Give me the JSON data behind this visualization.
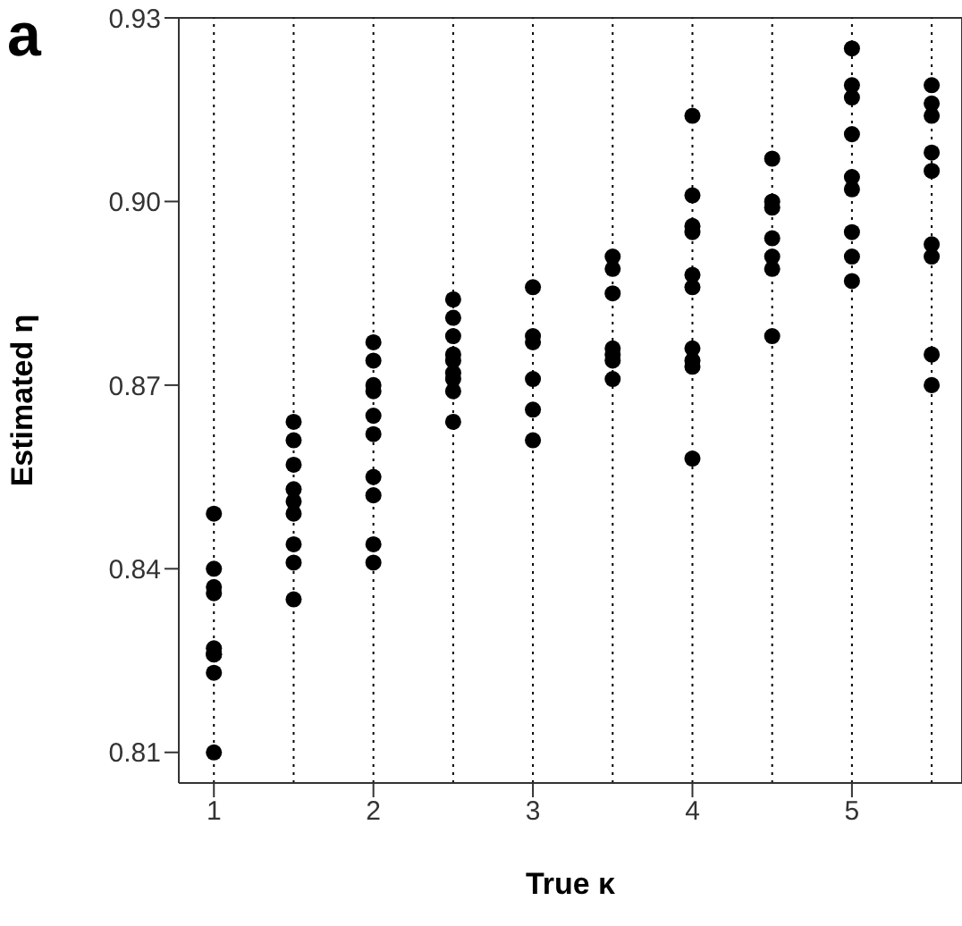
{
  "chart_data": {
    "type": "scatter",
    "title": "a",
    "xlabel": "True κ",
    "ylabel": "Estimated η",
    "x": [
      1,
      1,
      1,
      1,
      1,
      1,
      1,
      1,
      1,
      1.5,
      1.5,
      1.5,
      1.5,
      1.5,
      1.5,
      1.5,
      1.5,
      1.5,
      2,
      2,
      2,
      2,
      2,
      2,
      2,
      2,
      2,
      2,
      2.5,
      2.5,
      2.5,
      2.5,
      2.5,
      2.5,
      2.5,
      2.5,
      2.5,
      3,
      3,
      3,
      3,
      3,
      3,
      3.5,
      3.5,
      3.5,
      3.5,
      3.5,
      3.5,
      3.5,
      4,
      4,
      4,
      4,
      4,
      4,
      4,
      4,
      4,
      4,
      4.5,
      4.5,
      4.5,
      4.5,
      4.5,
      4.5,
      4.5,
      5,
      5,
      5,
      5,
      5,
      5,
      5,
      5,
      5,
      5.5,
      5.5,
      5.5,
      5.5,
      5.5,
      5.5,
      5.5,
      5.5,
      5.5
    ],
    "series": [
      {
        "color": "#000000",
        "values": [
          0.849,
          0.84,
          0.837,
          0.836,
          0.827,
          0.826,
          0.826,
          0.823,
          0.81,
          0.864,
          0.861,
          0.857,
          0.853,
          0.851,
          0.849,
          0.844,
          0.841,
          0.835,
          0.877,
          0.874,
          0.87,
          0.869,
          0.865,
          0.862,
          0.855,
          0.852,
          0.844,
          0.841,
          0.884,
          0.881,
          0.878,
          0.875,
          0.874,
          0.872,
          0.871,
          0.869,
          0.864,
          0.886,
          0.878,
          0.877,
          0.871,
          0.866,
          0.861,
          0.891,
          0.889,
          0.885,
          0.876,
          0.875,
          0.874,
          0.871,
          0.914,
          0.901,
          0.896,
          0.895,
          0.888,
          0.886,
          0.876,
          0.874,
          0.873,
          0.858,
          0.907,
          0.9,
          0.899,
          0.894,
          0.891,
          0.889,
          0.878,
          0.925,
          0.919,
          0.917,
          0.911,
          0.904,
          0.902,
          0.895,
          0.891,
          0.887,
          0.919,
          0.916,
          0.914,
          0.908,
          0.905,
          0.893,
          0.891,
          0.875,
          0.87
        ]
      }
    ],
    "xlim": [
      0.78,
      5.69
    ],
    "ylim": [
      0.805,
      0.93
    ],
    "xticks": [
      1,
      2,
      3,
      4,
      5
    ],
    "yticks": [
      0.81,
      0.84,
      0.87,
      {
        "value": 0.9,
        "label": "0.90"
      },
      0.93
    ],
    "marker": "circle",
    "ref_lines": [
      {
        "axis": "x",
        "value": 1,
        "line_style": "dotted",
        "color": "#000000"
      },
      {
        "axis": "x",
        "value": 1.5,
        "line_style": "dotted",
        "color": "#000000"
      },
      {
        "axis": "x",
        "value": 2,
        "line_style": "dotted",
        "color": "#000000"
      },
      {
        "axis": "x",
        "value": 2.5,
        "line_style": "dotted",
        "color": "#000000"
      },
      {
        "axis": "x",
        "value": 3,
        "line_style": "dotted",
        "color": "#000000"
      },
      {
        "axis": "x",
        "value": 3.5,
        "line_style": "dotted",
        "color": "#000000"
      },
      {
        "axis": "x",
        "value": 4,
        "line_style": "dotted",
        "color": "#000000"
      },
      {
        "axis": "x",
        "value": 4.5,
        "line_style": "dotted",
        "color": "#000000"
      },
      {
        "axis": "x",
        "value": 5,
        "line_style": "dotted",
        "color": "#000000"
      },
      {
        "axis": "x",
        "value": 5.5,
        "line_style": "dotted",
        "color": "#000000"
      }
    ]
  }
}
